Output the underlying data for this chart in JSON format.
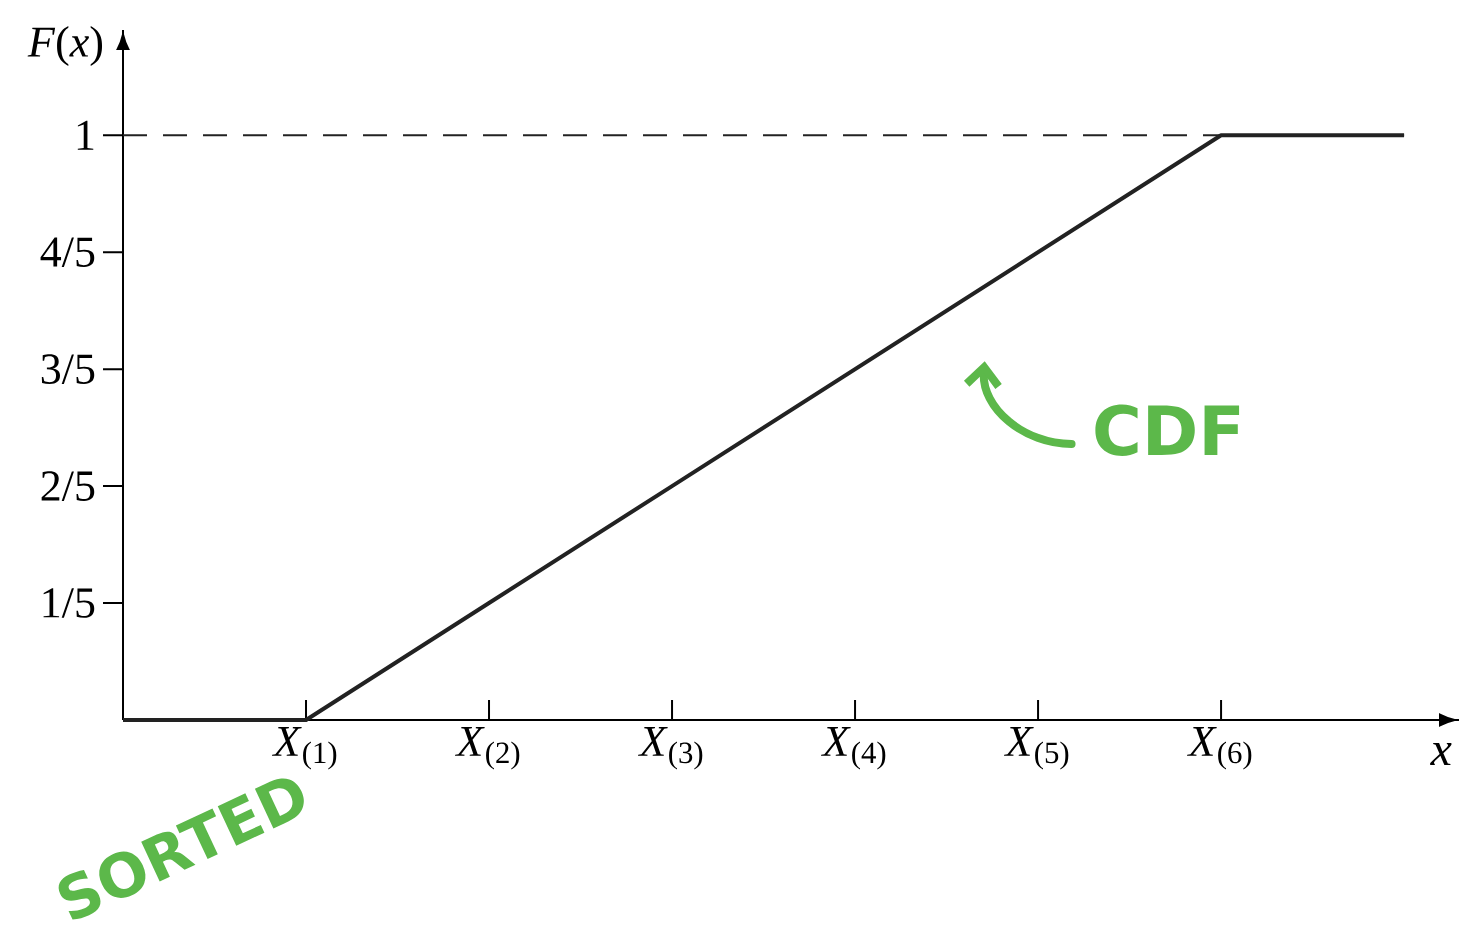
{
  "chart_data": {
    "type": "line",
    "xlabel": "*x*",
    "ylabel": "*F*(*x*)",
    "categories": [
      null,
      "*X*$_{(1)}$",
      "*X*$_{(2)}$",
      "*X*$_{(3)}$",
      "*X*$_{(4)}$",
      "*X*$_{(5)}$",
      "*X*$_{(6)}$",
      null
    ],
    "values": [
      0,
      0,
      0.2,
      0.4,
      0.6,
      0.8,
      1,
      1
    ],
    "color": "#222222",
    "line_style": "solid",
    "marker": "none",
    "ylim": [
      0,
      1.18
    ],
    "yticks": [
      {
        "value": 0.2,
        "label": "1/5"
      },
      {
        "value": 0.4,
        "label": "2/5"
      },
      {
        "value": 0.6,
        "label": "3/5"
      },
      {
        "value": 0.8,
        "label": "4/5"
      },
      1
    ],
    "ref_lines": [
      {
        "axis": "y",
        "value": 1,
        "line_style": "dashed",
        "color": "#222222"
      }
    ],
    "annotations": [
      "CDF",
      "SORTED"
    ]
  }
}
